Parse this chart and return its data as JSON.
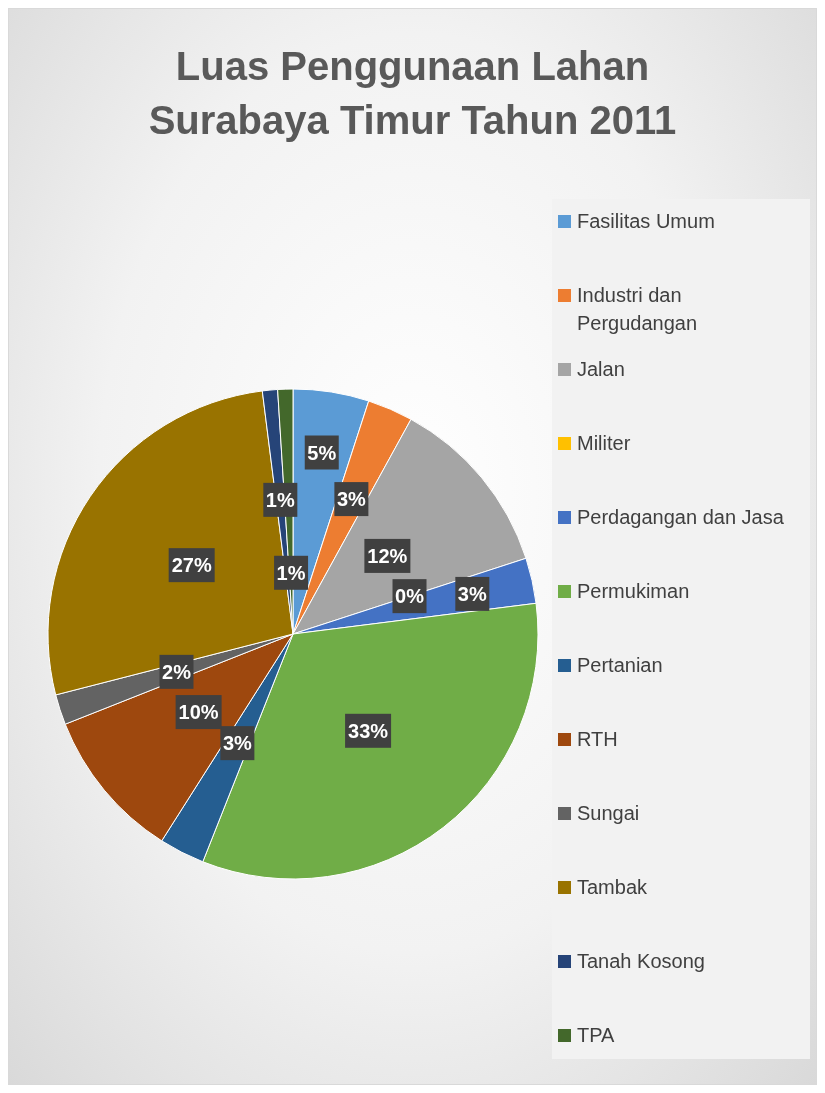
{
  "chart_data": {
    "type": "pie",
    "title": "Luas Penggunaan Lahan Surabaya Timur Tahun 2011",
    "categories": [
      "Fasilitas Umum",
      "Industri dan Pergudangan",
      "Jalan",
      "Militer",
      "Perdagangan dan Jasa",
      "Permukiman",
      "Pertanian",
      "RTH",
      "Sungai",
      "Tambak",
      "Tanah Kosong",
      "TPA"
    ],
    "values": [
      5,
      3,
      12,
      0,
      3,
      33,
      3,
      10,
      2,
      27,
      1,
      1
    ],
    "colors": [
      "#5b9bd5",
      "#ed7d31",
      "#a5a5a5",
      "#ffc000",
      "#4472c4",
      "#70ad47",
      "#255e91",
      "#9e480e",
      "#636363",
      "#997300",
      "#264478",
      "#43682b"
    ],
    "value_labels": [
      "5%",
      "3%",
      "12%",
      "0%",
      "3%",
      "33%",
      "3%",
      "10%",
      "2%",
      "27%",
      "1%",
      "1%"
    ],
    "legend": "right"
  }
}
